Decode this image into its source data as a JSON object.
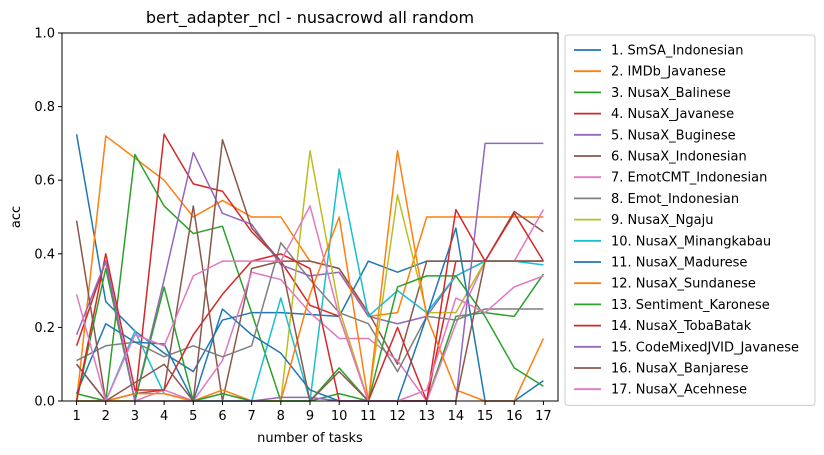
{
  "chart_data": {
    "type": "line",
    "title": "bert_adapter_ncl - nusacrowd all random",
    "xlabel": "number of tasks",
    "ylabel": "acc",
    "ylim": [
      0,
      1
    ],
    "xlim": [
      0.5,
      17.5
    ],
    "x": [
      1,
      2,
      3,
      4,
      5,
      6,
      7,
      8,
      9,
      10,
      11,
      12,
      13,
      14,
      15,
      16,
      17
    ],
    "yticks": [
      "0.0",
      "0.2",
      "0.4",
      "0.6",
      "0.8",
      "1.0"
    ],
    "xticks": [
      "1",
      "2",
      "3",
      "4",
      "5",
      "6",
      "7",
      "8",
      "9",
      "10",
      "11",
      "12",
      "13",
      "14",
      "15",
      "16",
      "17"
    ],
    "legend_position": "outside-right",
    "grid": false,
    "series": [
      {
        "name": "1. SmSA_Indonesian",
        "color": "#1f77b4",
        "values": [
          0.725,
          0.27,
          0.19,
          0.13,
          0.08,
          0.22,
          0.24,
          0.24,
          0.235,
          0.23,
          0.38,
          0.35,
          0.38,
          0.38,
          0.38,
          0.38,
          0.38
        ]
      },
      {
        "name": "2. IMDb_Javanese",
        "color": "#ff7f0e",
        "values": [
          0.0,
          0.72,
          0.66,
          0.6,
          0.5,
          0.545,
          0.5,
          0.5,
          0.38,
          0.36,
          0.23,
          0.24,
          0.5,
          0.5,
          0.5,
          0.5,
          0.5
        ]
      },
      {
        "name": "3. NusaX_Balinese",
        "color": "#2ca02c",
        "values": [
          0.02,
          0.0,
          0.67,
          0.53,
          0.455,
          0.475,
          0.24,
          0.0,
          0.0,
          0.02,
          0.0,
          0.0,
          0.0,
          0.23,
          0.24,
          0.23,
          0.345
        ]
      },
      {
        "name": "4. NusaX_Javanese",
        "color": "#d62728",
        "values": [
          0.15,
          0.38,
          0.0,
          0.725,
          0.59,
          0.57,
          0.46,
          0.38,
          0.26,
          0.23,
          0.0,
          0.0,
          0.0,
          0.38,
          0.38,
          0.38,
          0.38
        ]
      },
      {
        "name": "5. NusaX_Buginese",
        "color": "#9467bd",
        "values": [
          0.1,
          0.0,
          0.0,
          0.33,
          0.675,
          0.51,
          0.48,
          0.37,
          0.34,
          0.35,
          0.23,
          0.21,
          0.23,
          0.34,
          0.38,
          0.38,
          0.38
        ]
      },
      {
        "name": "6. NusaX_Indonesian",
        "color": "#8c564b",
        "values": [
          0.1,
          0.0,
          0.02,
          0.03,
          0.53,
          0.0,
          0.36,
          0.38,
          0.38,
          0.36,
          0.24,
          0.1,
          0.38,
          0.38,
          0.38,
          0.515,
          0.46
        ]
      },
      {
        "name": "7. EmotCMT_Indonesian",
        "color": "#e377c2",
        "values": [
          0.0,
          0.0,
          0.0,
          0.03,
          0.0,
          0.11,
          0.35,
          0.33,
          0.24,
          0.17,
          0.17,
          0.11,
          0.0,
          0.21,
          0.38,
          0.38,
          0.52
        ]
      },
      {
        "name": "8. Emot_Indonesian",
        "color": "#7f7f7f",
        "values": [
          0.11,
          0.15,
          0.16,
          0.12,
          0.15,
          0.12,
          0.15,
          0.43,
          0.33,
          0.24,
          0.21,
          0.08,
          0.23,
          0.22,
          0.25,
          0.25,
          0.25
        ]
      },
      {
        "name": "9. NusaX_Ngaju",
        "color": "#bcbd22",
        "values": [
          0.0,
          0.0,
          0.0,
          0.0,
          0.0,
          0.0,
          0.0,
          0.0,
          0.68,
          0.25,
          0.0,
          0.56,
          0.24,
          0.24,
          0.38,
          0.38,
          0.38
        ]
      },
      {
        "name": "10. NusaX_Minangkabau",
        "color": "#17becf",
        "values": [
          0.0,
          0.0,
          0.19,
          0.02,
          0.0,
          0.0,
          0.0,
          0.28,
          0.0,
          0.63,
          0.23,
          0.3,
          0.24,
          0.34,
          0.38,
          0.38,
          0.37
        ]
      },
      {
        "name": "11. NusaX_Madurese",
        "color": "#1f77b4",
        "values": [
          0.02,
          0.21,
          0.16,
          0.155,
          0.0,
          0.25,
          0.18,
          0.13,
          0.03,
          0.0,
          0.0,
          0.0,
          0.23,
          0.47,
          0.0,
          0.0,
          0.055
        ]
      },
      {
        "name": "12. NusaX_Sundanese",
        "color": "#ff7f0e",
        "values": [
          0.0,
          0.0,
          0.02,
          0.02,
          0.0,
          0.03,
          0.0,
          0.0,
          0.29,
          0.5,
          0.0,
          0.68,
          0.23,
          0.03,
          0.0,
          0.0,
          0.17
        ]
      },
      {
        "name": "13. Sentiment_Karonese",
        "color": "#2ca02c",
        "values": [
          0.0,
          0.36,
          0.0,
          0.31,
          0.0,
          0.02,
          0.0,
          0.0,
          0.0,
          0.09,
          0.0,
          0.31,
          0.34,
          0.34,
          0.23,
          0.09,
          0.04
        ]
      },
      {
        "name": "14. NusaX_TobaBatak",
        "color": "#d62728",
        "values": [
          0.0,
          0.4,
          0.03,
          0.03,
          0.18,
          0.29,
          0.38,
          0.4,
          0.36,
          0.0,
          0.0,
          0.2,
          0.0,
          0.52,
          0.38,
          0.51,
          0.38
        ]
      },
      {
        "name": "15. CodeMixedJVID_Javanese",
        "color": "#9467bd",
        "values": [
          0.18,
          0.38,
          0.0,
          0.0,
          0.0,
          0.0,
          0.0,
          0.01,
          0.01,
          0.0,
          0.0,
          0.0,
          0.0,
          0.0,
          0.7,
          0.7,
          0.7
        ]
      },
      {
        "name": "16. NusaX_Banjarese",
        "color": "#8c564b",
        "values": [
          0.49,
          0.0,
          0.05,
          0.1,
          0.0,
          0.71,
          0.47,
          0.38,
          0.0,
          0.08,
          0.0,
          0.0,
          0.0,
          0.0,
          0.38,
          0.38,
          0.38
        ]
      },
      {
        "name": "17. NusaX_Acehnese",
        "color": "#e377c2",
        "values": [
          0.29,
          0.0,
          0.18,
          0.15,
          0.34,
          0.38,
          0.38,
          0.38,
          0.53,
          0.23,
          0.0,
          0.0,
          0.03,
          0.28,
          0.24,
          0.31,
          0.34
        ]
      }
    ]
  }
}
